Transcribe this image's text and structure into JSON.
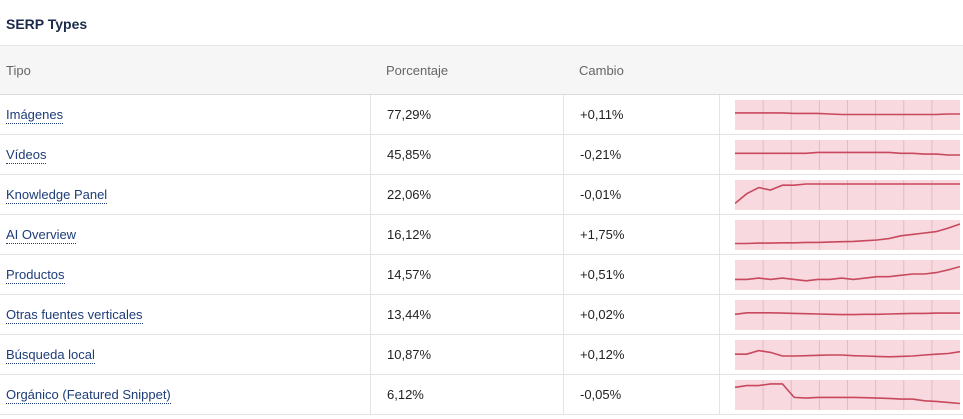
{
  "title": "SERP Types",
  "columns": {
    "tipo": "Tipo",
    "porcentaje": "Porcentaje",
    "cambio": "Cambio"
  },
  "colors": {
    "spark_fill": "#f7d9df",
    "spark_line": "#c8485e",
    "link": "#1d3c78"
  },
  "rows": [
    {
      "tipo": "Imágenes",
      "porcentaje": "77,29%",
      "cambio": "+0,11%",
      "trend": [
        77.3,
        77.3,
        77.3,
        77.3,
        77.3,
        77.2,
        77.2,
        77.2,
        77.1,
        77.0,
        77.0,
        77.0,
        77.0,
        77.0,
        77.0,
        77.0,
        77.0,
        77.0,
        77.1,
        77.1
      ]
    },
    {
      "tipo": "Vídeos",
      "porcentaje": "45,85%",
      "cambio": "-0,21%",
      "trend": [
        46.1,
        46.1,
        46.1,
        46.1,
        46.1,
        46.1,
        46.1,
        46.2,
        46.2,
        46.2,
        46.2,
        46.2,
        46.2,
        46.2,
        46.1,
        46.1,
        46.0,
        46.0,
        45.9,
        45.9
      ]
    },
    {
      "tipo": "Knowledge Panel",
      "porcentaje": "22,06%",
      "cambio": "-0,01%",
      "trend": [
        20.5,
        21.3,
        21.8,
        21.6,
        22.0,
        22.0,
        22.1,
        22.1,
        22.1,
        22.1,
        22.1,
        22.1,
        22.1,
        22.1,
        22.1,
        22.1,
        22.1,
        22.1,
        22.1,
        22.1
      ]
    },
    {
      "tipo": "AI Overview",
      "porcentaje": "16,12%",
      "cambio": "+1,75%",
      "trend": [
        13.3,
        13.3,
        13.35,
        13.35,
        13.4,
        13.4,
        13.45,
        13.45,
        13.5,
        13.55,
        13.6,
        13.7,
        13.8,
        14.0,
        14.4,
        14.6,
        14.8,
        15.0,
        15.5,
        16.1
      ]
    },
    {
      "tipo": "Productos",
      "porcentaje": "14,57%",
      "cambio": "+0,51%",
      "trend": [
        14.1,
        14.1,
        14.15,
        14.1,
        14.15,
        14.1,
        14.05,
        14.1,
        14.1,
        14.15,
        14.1,
        14.15,
        14.2,
        14.2,
        14.25,
        14.3,
        14.3,
        14.35,
        14.45,
        14.57
      ]
    },
    {
      "tipo": "Otras fuentes verticales",
      "porcentaje": "13,44%",
      "cambio": "+0,02%",
      "trend": [
        13.4,
        13.45,
        13.45,
        13.45,
        13.44,
        13.43,
        13.42,
        13.41,
        13.4,
        13.39,
        13.39,
        13.4,
        13.4,
        13.41,
        13.42,
        13.43,
        13.43,
        13.44,
        13.44,
        13.44
      ]
    },
    {
      "tipo": "Búsqueda local",
      "porcentaje": "10,87%",
      "cambio": "+0,12%",
      "trend": [
        10.8,
        10.8,
        10.9,
        10.85,
        10.75,
        10.75,
        10.76,
        10.77,
        10.78,
        10.78,
        10.76,
        10.75,
        10.74,
        10.73,
        10.74,
        10.75,
        10.78,
        10.8,
        10.82,
        10.87
      ]
    },
    {
      "tipo": "Orgánico (Featured Snippet)",
      "porcentaje": "6,12%",
      "cambio": "-0,05%",
      "trend": [
        6.6,
        6.65,
        6.65,
        6.7,
        6.7,
        6.3,
        6.28,
        6.3,
        6.3,
        6.3,
        6.3,
        6.29,
        6.28,
        6.27,
        6.25,
        6.25,
        6.2,
        6.18,
        6.15,
        6.12
      ]
    }
  ]
}
